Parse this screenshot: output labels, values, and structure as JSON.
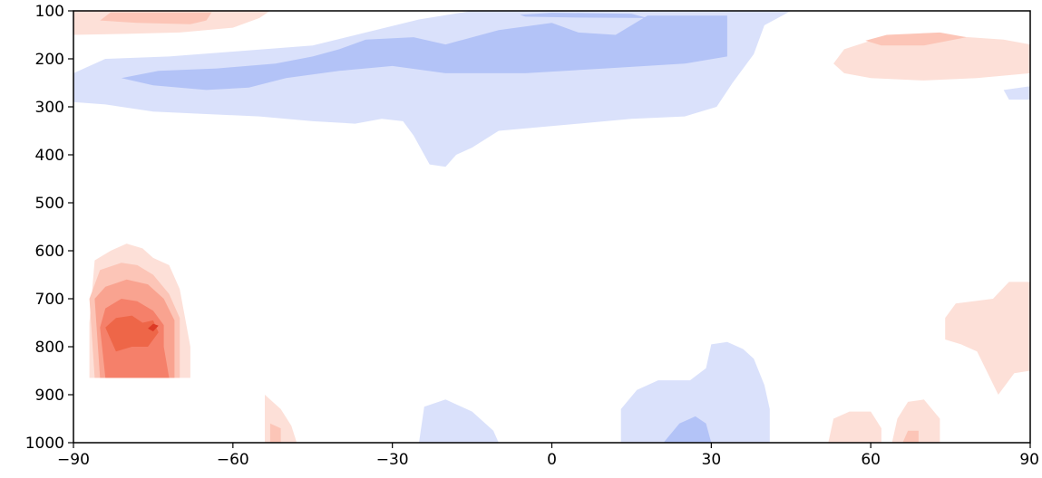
{
  "chart_data": {
    "type": "heatmap",
    "subtype": "filled-contour",
    "title": "",
    "xlabel": "",
    "ylabel": "",
    "xlim": [
      -90,
      90
    ],
    "ylim": [
      1000,
      100
    ],
    "y_inverted": true,
    "grid": false,
    "legend": "none",
    "xticks": [
      {
        "value": -90,
        "label": "−90"
      },
      {
        "value": -60,
        "label": "−60"
      },
      {
        "value": -30,
        "label": "−30"
      },
      {
        "value": 0,
        "label": "0"
      },
      {
        "value": 30,
        "label": "30"
      },
      {
        "value": 60,
        "label": "60"
      },
      {
        "value": 90,
        "label": "90"
      }
    ],
    "yticks": [
      {
        "value": 100,
        "label": "100"
      },
      {
        "value": 200,
        "label": "200"
      },
      {
        "value": 300,
        "label": "300"
      },
      {
        "value": 400,
        "label": "400"
      },
      {
        "value": 500,
        "label": "500"
      },
      {
        "value": 600,
        "label": "600"
      },
      {
        "value": 700,
        "label": "700"
      },
      {
        "value": 800,
        "label": "800"
      },
      {
        "value": 900,
        "label": "900"
      },
      {
        "value": 1000,
        "label": "1000"
      }
    ],
    "levels": [
      {
        "level": -2,
        "color": "#b3c3f7"
      },
      {
        "level": -1,
        "color": "#dae1fb"
      },
      {
        "level": 1,
        "color": "#fde0d8"
      },
      {
        "level": 2,
        "color": "#fcc5b7"
      },
      {
        "level": 3,
        "color": "#f9a390"
      },
      {
        "level": 4,
        "color": "#f5806a"
      },
      {
        "level": 5,
        "color": "#ee6648"
      },
      {
        "level": 6,
        "color": "#dd3a26"
      }
    ],
    "regions": [
      {
        "level": -1,
        "points": [
          [
            -90,
            290
          ],
          [
            -90,
            230
          ],
          [
            -84,
            200
          ],
          [
            -72,
            195
          ],
          [
            -60,
            185
          ],
          [
            -45,
            172
          ],
          [
            -35,
            145
          ],
          [
            -25,
            118
          ],
          [
            -15,
            100
          ],
          [
            45,
            100
          ],
          [
            40,
            130
          ],
          [
            38,
            190
          ],
          [
            34,
            250
          ],
          [
            31,
            300
          ],
          [
            25,
            320
          ],
          [
            15,
            325
          ],
          [
            5,
            335
          ],
          [
            -10,
            350
          ],
          [
            -15,
            385
          ],
          [
            -18,
            400
          ],
          [
            -20,
            425
          ],
          [
            -23,
            420
          ],
          [
            -26,
            360
          ],
          [
            -28,
            330
          ],
          [
            -32,
            325
          ],
          [
            -37,
            335
          ],
          [
            -45,
            330
          ],
          [
            -55,
            320
          ],
          [
            -65,
            315
          ],
          [
            -75,
            310
          ],
          [
            -84,
            295
          ]
        ]
      },
      {
        "level": -2,
        "points": [
          [
            -81,
            240
          ],
          [
            -74,
            225
          ],
          [
            -63,
            220
          ],
          [
            -52,
            210
          ],
          [
            -45,
            195
          ],
          [
            -40,
            180
          ],
          [
            -35,
            160
          ],
          [
            -26,
            155
          ],
          [
            -20,
            170
          ],
          [
            -10,
            140
          ],
          [
            0,
            125
          ],
          [
            5,
            145
          ],
          [
            12,
            150
          ],
          [
            18,
            110
          ],
          [
            26,
            110
          ],
          [
            33,
            110
          ],
          [
            33,
            195
          ],
          [
            25,
            210
          ],
          [
            10,
            220
          ],
          [
            -5,
            230
          ],
          [
            -20,
            230
          ],
          [
            -30,
            215
          ],
          [
            -40,
            225
          ],
          [
            -50,
            240
          ],
          [
            -57,
            260
          ],
          [
            -65,
            265
          ],
          [
            -75,
            255
          ]
        ]
      },
      {
        "level": -2,
        "points": [
          [
            -6,
            108
          ],
          [
            0,
            104
          ],
          [
            15,
            106
          ],
          [
            18,
            115
          ],
          [
            5,
            114
          ],
          [
            -5,
            112
          ]
        ]
      },
      {
        "level": -1,
        "points": [
          [
            85,
            265
          ],
          [
            90,
            257
          ],
          [
            90,
            285
          ],
          [
            86,
            285
          ]
        ]
      },
      {
        "level": -1,
        "points": [
          [
            -25,
            1000
          ],
          [
            -24,
            925
          ],
          [
            -20,
            910
          ],
          [
            -15,
            935
          ],
          [
            -11,
            975
          ],
          [
            -10,
            1000
          ]
        ]
      },
      {
        "level": -1,
        "points": [
          [
            13,
            1000
          ],
          [
            13,
            930
          ],
          [
            16,
            890
          ],
          [
            20,
            870
          ],
          [
            26,
            870
          ],
          [
            29,
            845
          ],
          [
            30,
            795
          ],
          [
            33,
            790
          ],
          [
            36,
            805
          ],
          [
            38,
            825
          ],
          [
            40,
            880
          ],
          [
            41,
            930
          ],
          [
            41,
            1000
          ]
        ]
      },
      {
        "level": -2,
        "points": [
          [
            21,
            1000
          ],
          [
            24,
            960
          ],
          [
            27,
            945
          ],
          [
            29,
            960
          ],
          [
            30,
            1000
          ]
        ]
      },
      {
        "level": 1,
        "points": [
          [
            -90,
            150
          ],
          [
            -90,
            100
          ],
          [
            -53,
            100
          ],
          [
            -55,
            115
          ],
          [
            -60,
            135
          ],
          [
            -70,
            145
          ],
          [
            -80,
            148
          ]
        ]
      },
      {
        "level": 2,
        "points": [
          [
            -85,
            120
          ],
          [
            -83,
            103
          ],
          [
            -64,
            103
          ],
          [
            -65,
            120
          ],
          [
            -68,
            128
          ],
          [
            -78,
            125
          ]
        ]
      },
      {
        "level": 1,
        "points": [
          [
            53,
            210
          ],
          [
            55,
            180
          ],
          [
            60,
            162
          ],
          [
            72,
            150
          ],
          [
            85,
            160
          ],
          [
            90,
            170
          ],
          [
            90,
            230
          ],
          [
            80,
            240
          ],
          [
            70,
            245
          ],
          [
            60,
            240
          ],
          [
            55,
            230
          ]
        ]
      },
      {
        "level": 2,
        "points": [
          [
            59,
            162
          ],
          [
            63,
            150
          ],
          [
            73,
            145
          ],
          [
            78,
            155
          ],
          [
            70,
            172
          ],
          [
            62,
            172
          ]
        ]
      },
      {
        "level": 1,
        "points": [
          [
            84,
            900
          ],
          [
            80,
            810
          ],
          [
            77,
            795
          ],
          [
            74,
            785
          ],
          [
            74,
            740
          ],
          [
            76,
            710
          ],
          [
            83,
            700
          ],
          [
            86,
            665
          ],
          [
            90,
            665
          ],
          [
            90,
            850
          ],
          [
            87,
            855
          ]
        ]
      },
      {
        "level": 1,
        "points": [
          [
            -87,
            865
          ],
          [
            -87,
            750
          ],
          [
            -86,
            620
          ],
          [
            -83,
            600
          ],
          [
            -80,
            585
          ],
          [
            -77,
            595
          ],
          [
            -75,
            615
          ],
          [
            -72,
            630
          ],
          [
            -70,
            680
          ],
          [
            -69,
            740
          ],
          [
            -68,
            800
          ],
          [
            -68,
            865
          ]
        ]
      },
      {
        "level": 2,
        "points": [
          [
            -86,
            865
          ],
          [
            -87,
            700
          ],
          [
            -85,
            640
          ],
          [
            -81,
            625
          ],
          [
            -78,
            630
          ],
          [
            -75,
            650
          ],
          [
            -72,
            690
          ],
          [
            -70,
            740
          ],
          [
            -70,
            800
          ],
          [
            -70,
            865
          ]
        ]
      },
      {
        "level": 3,
        "points": [
          [
            -85,
            865
          ],
          [
            -86,
            700
          ],
          [
            -84,
            675
          ],
          [
            -80,
            660
          ],
          [
            -76,
            670
          ],
          [
            -73,
            700
          ],
          [
            -71,
            745
          ],
          [
            -71,
            800
          ],
          [
            -71,
            865
          ]
        ]
      },
      {
        "level": 4,
        "points": [
          [
            -84,
            865
          ],
          [
            -85,
            760
          ],
          [
            -84,
            720
          ],
          [
            -81,
            700
          ],
          [
            -78,
            705
          ],
          [
            -75,
            725
          ],
          [
            -73,
            755
          ],
          [
            -73,
            800
          ],
          [
            -72,
            865
          ]
        ]
      },
      {
        "level": 5,
        "points": [
          [
            -82,
            810
          ],
          [
            -84,
            760
          ],
          [
            -82,
            740
          ],
          [
            -79,
            735
          ],
          [
            -77,
            750
          ],
          [
            -75,
            745
          ],
          [
            -74,
            770
          ],
          [
            -76,
            800
          ],
          [
            -79,
            800
          ]
        ]
      },
      {
        "level": 6,
        "points": [
          [
            -76,
            762
          ],
          [
            -75,
            752
          ],
          [
            -74,
            756
          ],
          [
            -75,
            768
          ]
        ]
      },
      {
        "level": 1,
        "points": [
          [
            -54,
            1000
          ],
          [
            -54,
            900
          ],
          [
            -51,
            930
          ],
          [
            -49,
            965
          ],
          [
            -48,
            1000
          ]
        ]
      },
      {
        "level": 2,
        "points": [
          [
            -53,
            1000
          ],
          [
            -53,
            960
          ],
          [
            -51,
            970
          ],
          [
            -51,
            1000
          ]
        ]
      },
      {
        "level": 1,
        "points": [
          [
            52,
            1000
          ],
          [
            53,
            950
          ],
          [
            56,
            935
          ],
          [
            60,
            935
          ],
          [
            62,
            970
          ],
          [
            62,
            1000
          ]
        ]
      },
      {
        "level": 1,
        "points": [
          [
            64,
            1000
          ],
          [
            65,
            950
          ],
          [
            67,
            915
          ],
          [
            70,
            910
          ],
          [
            73,
            950
          ],
          [
            73,
            1000
          ]
        ]
      },
      {
        "level": 2,
        "points": [
          [
            66,
            1000
          ],
          [
            67,
            975
          ],
          [
            69,
            975
          ],
          [
            69,
            1000
          ]
        ]
      }
    ]
  }
}
